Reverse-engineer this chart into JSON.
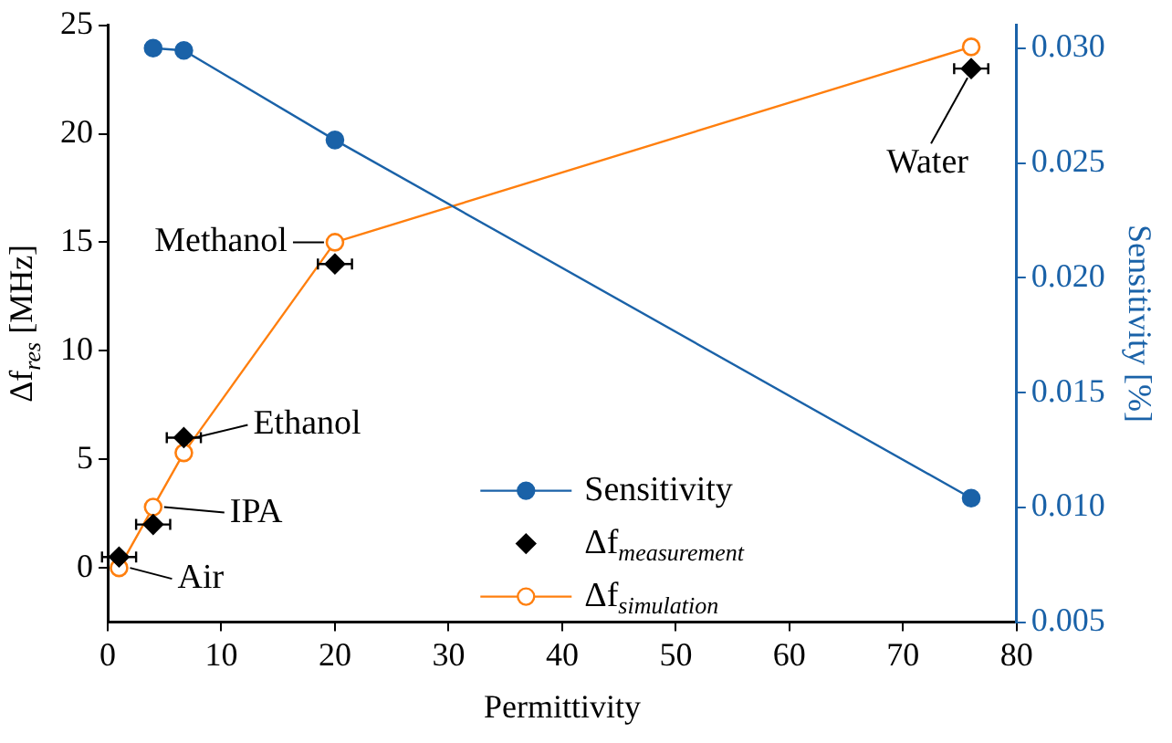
{
  "chart_data": {
    "type": "line",
    "xlabel": "Permittivity",
    "ylabel": "Δf$_{res}$ [MHz]",
    "y2label": "Sensitivity [%]",
    "xlim": [
      0,
      80
    ],
    "xticks": [
      0,
      10,
      20,
      30,
      40,
      50,
      60,
      70,
      80
    ],
    "ylim": [
      -2.5,
      25
    ],
    "yticks": [
      0,
      5,
      10,
      15,
      20,
      25
    ],
    "y2lim": [
      0.005,
      0.031
    ],
    "y2ticks": [
      {
        "value": 0.005,
        "label": "0.005"
      },
      {
        "value": 0.01,
        "label": "0.010"
      },
      {
        "value": 0.015,
        "label": "0.015"
      },
      {
        "value": 0.02,
        "label": "0.020"
      },
      {
        "value": 0.025,
        "label": "0.025"
      },
      {
        "value": 0.03,
        "label": "0.030"
      }
    ],
    "legend": "bottom",
    "grid": false,
    "series": [
      {
        "name": "Sensitivity",
        "type": "line",
        "axis": "y2",
        "marker": "circle",
        "color": "#1a62a8",
        "x": [
          4,
          6.7,
          20,
          76
        ],
        "values": [
          0.03,
          0.0299,
          0.026,
          0.0104
        ]
      },
      {
        "name": "Δf$_{measurement}$",
        "type": "scatter",
        "marker": "diamond",
        "color": "#000000",
        "x": [
          1,
          4,
          6.7,
          20,
          76
        ],
        "values": [
          0.5,
          2,
          6,
          14,
          23
        ],
        "xerrors": [
          1.5,
          1.5,
          1.5,
          1.5,
          1.5
        ]
      },
      {
        "name": "Δf$_{simulation}$",
        "type": "line",
        "marker": "circle",
        "color": "#ff7f0e",
        "x": [
          1,
          4,
          6.7,
          20,
          76
        ],
        "values": [
          0,
          2.8,
          5.3,
          15,
          24
        ]
      }
    ],
    "annotations": [
      {
        "text": "Air",
        "x": 1,
        "y": 0
      },
      {
        "text": "IPA",
        "x": 4,
        "y": 2.8
      },
      {
        "text": "Ethanol",
        "x": 6.7,
        "y": 6
      },
      {
        "text": "Methanol",
        "x": 20,
        "y": 15
      },
      {
        "text": "Water",
        "x": 76,
        "y": 23
      }
    ]
  }
}
